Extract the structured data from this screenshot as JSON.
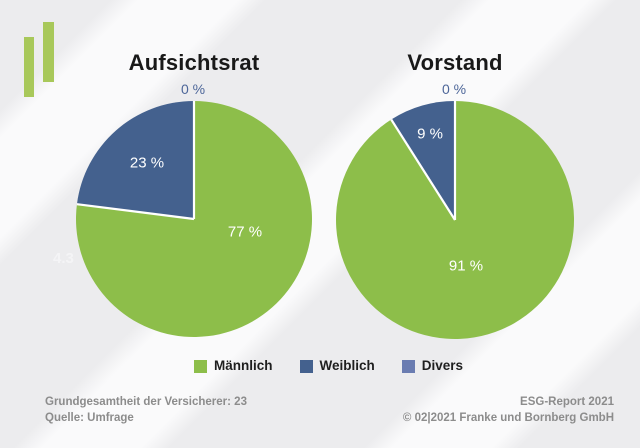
{
  "background": {
    "stripe_dark": "#ececee",
    "stripe_light": "#fafafb"
  },
  "logo": {
    "bar_color": "#a8c85a"
  },
  "chart_data": [
    {
      "type": "pie",
      "title": "Aufsichtsrat",
      "labels": [
        "Männlich",
        "Weiblich",
        "Divers"
      ],
      "values": [
        77,
        23,
        0
      ],
      "unit": "%",
      "data_labels": [
        "77 %",
        "23 %",
        "0 %"
      ],
      "colors": [
        "#8dbe4a",
        "#44618e",
        "#6a7cb1"
      ],
      "start_angle_deg": 0,
      "direction": "clockwise",
      "legend_position": "bottom"
    },
    {
      "type": "pie",
      "title": "Vorstand",
      "labels": [
        "Männlich",
        "Weiblich",
        "Divers"
      ],
      "values": [
        91,
        9,
        0
      ],
      "unit": "%",
      "data_labels": [
        "91 %",
        "9 %",
        "0 %"
      ],
      "colors": [
        "#8dbe4a",
        "#44618e",
        "#6a7cb1"
      ],
      "start_angle_deg": 0,
      "direction": "clockwise",
      "legend_position": "bottom"
    }
  ],
  "legend": {
    "items": [
      {
        "label": "Männlich",
        "color": "#8dbe4a"
      },
      {
        "label": "Weiblich",
        "color": "#44618e"
      },
      {
        "label": "Divers",
        "color": "#6a7cb1"
      }
    ]
  },
  "footer": {
    "left_line1": "Grundgesamtheit der Versicherer: 23",
    "left_line2": "Quelle: Umfrage",
    "right_line1": "ESG-Report 2021",
    "right_line2": "© 02|2021 Franke und Bornberg GmbH"
  },
  "watermark": "4.3",
  "styles": {
    "title_color": "#191919",
    "slice_label_color": "#ffffff",
    "zero_label_color": "#4d6699",
    "separator_color": "#ffffff"
  }
}
